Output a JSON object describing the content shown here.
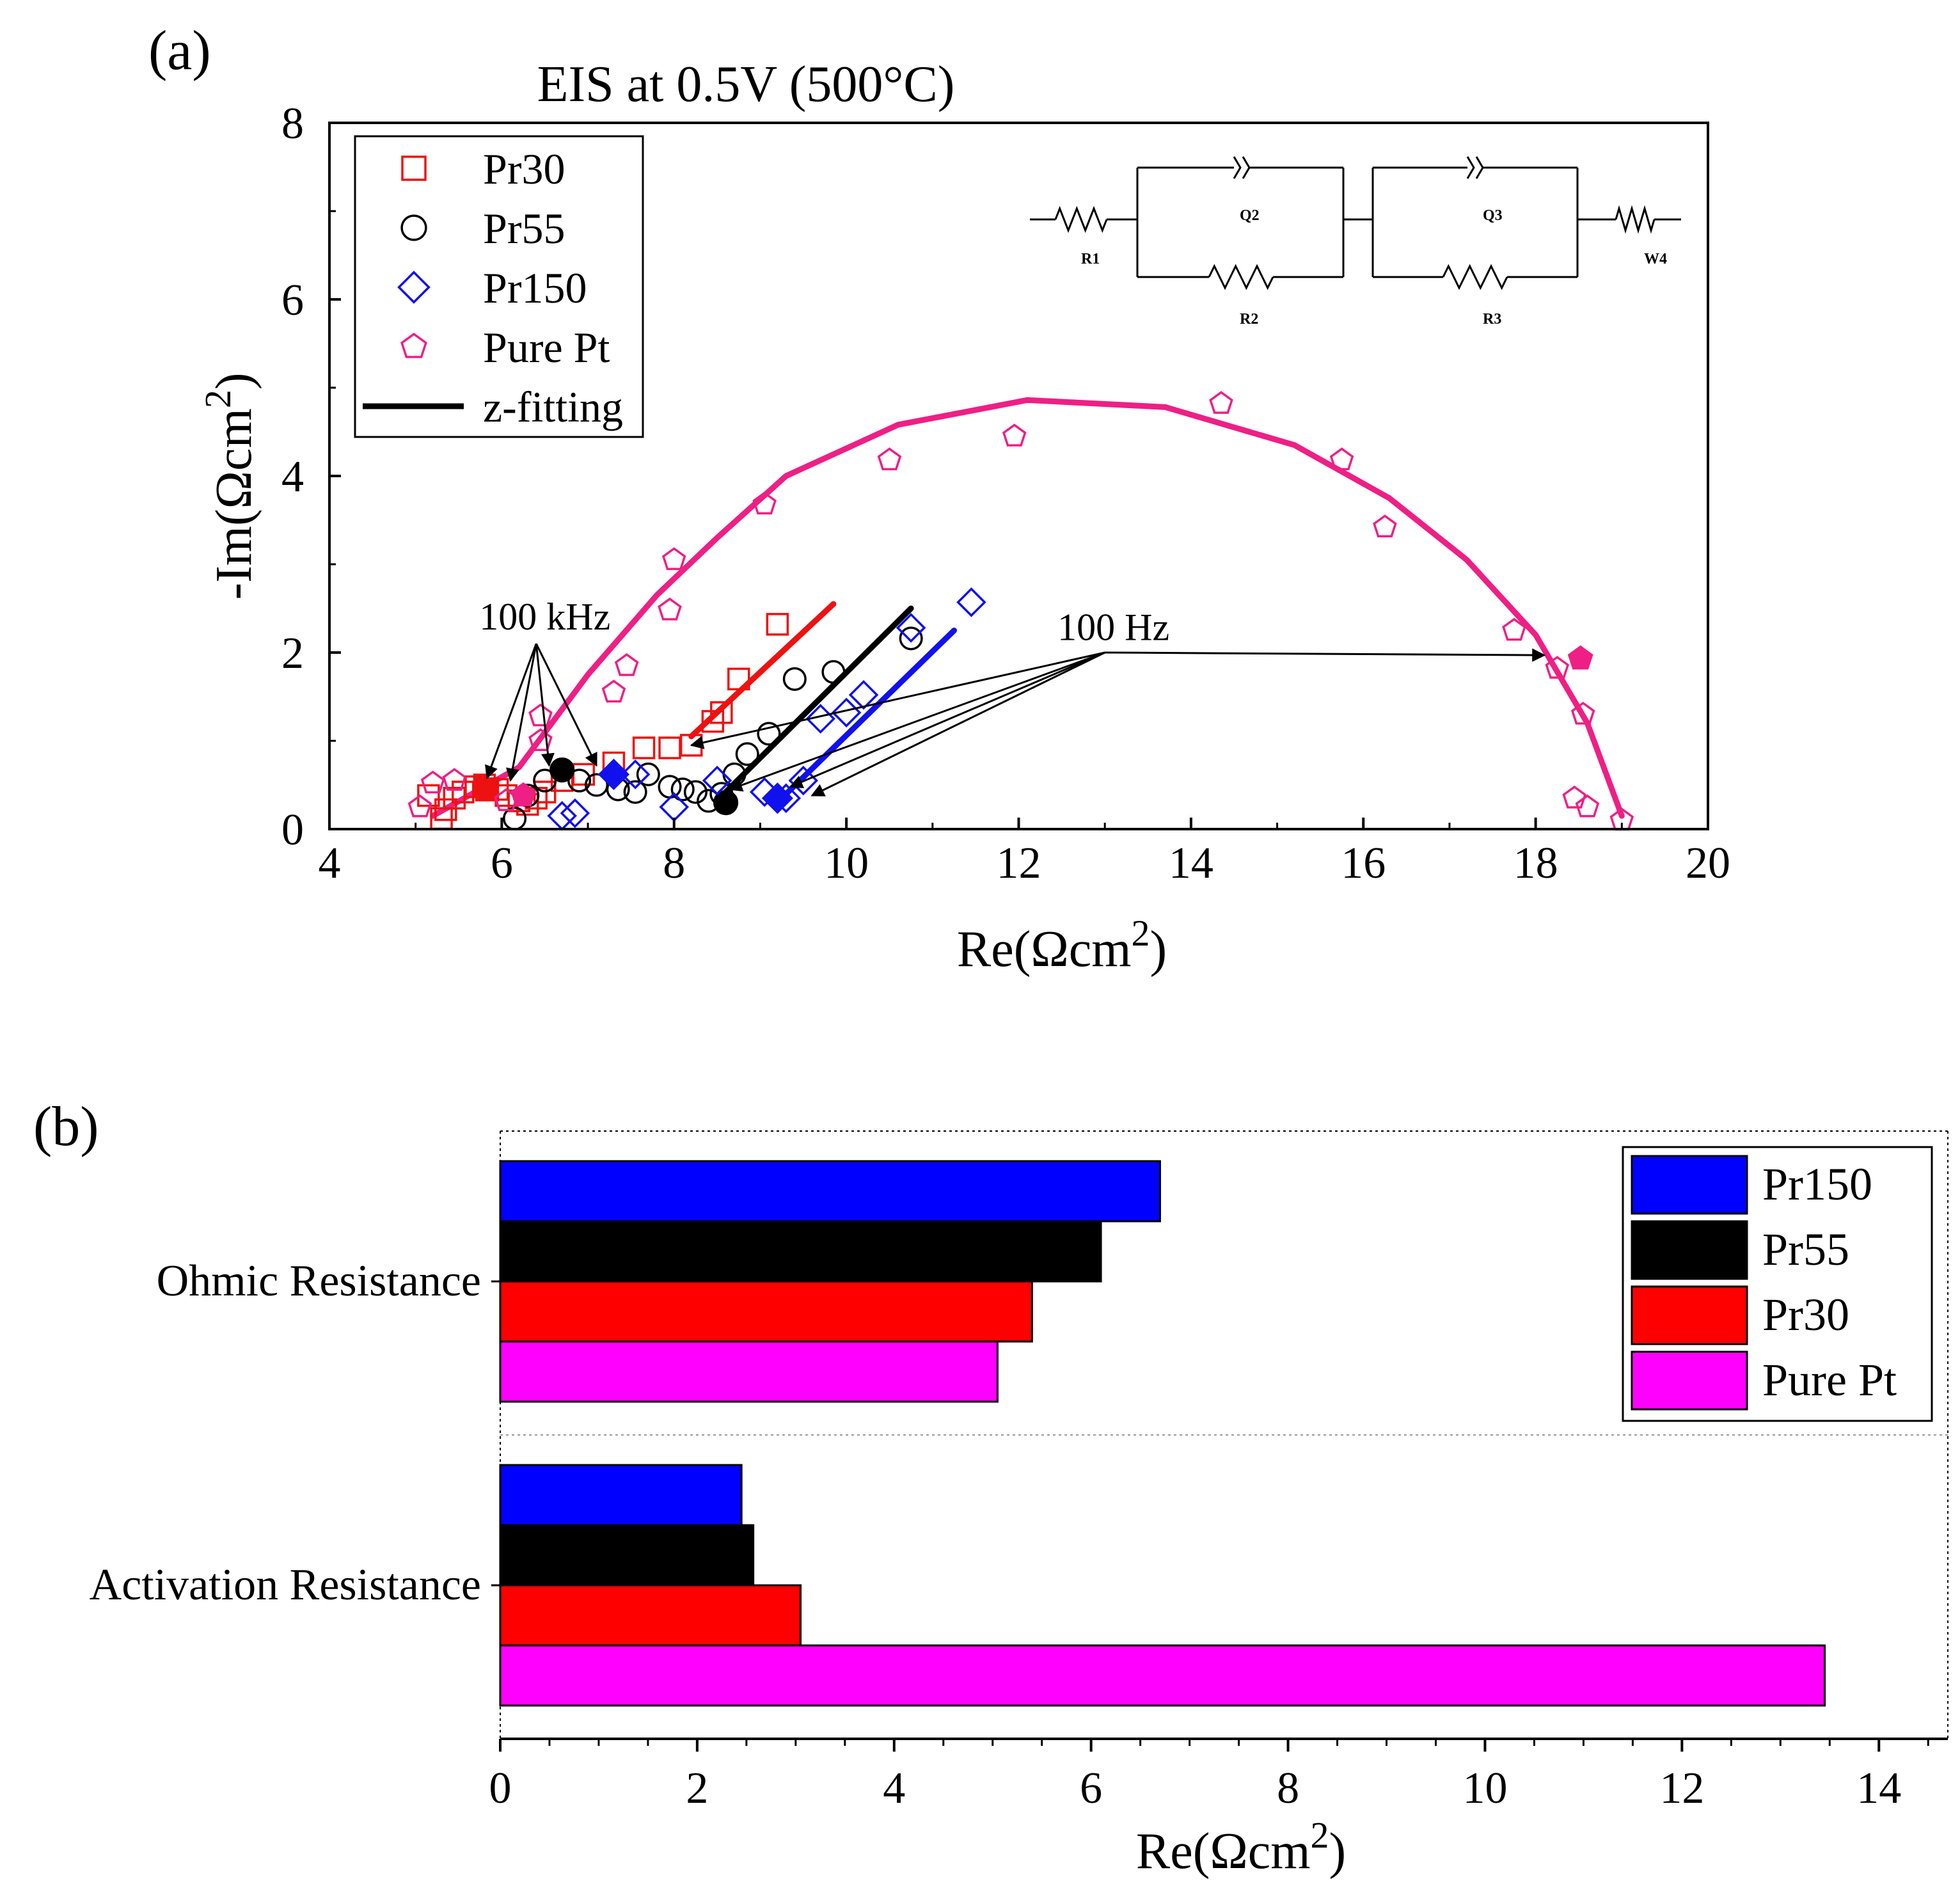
{
  "chart_data": [
    {
      "panel_label": "(a)",
      "type": "scatter",
      "title": "EIS at 0.5V (500°C)",
      "xlabel_base": "Re(Ωcm",
      "ylabel_base": "-Im(Ωcm",
      "label_sup": "2",
      "label_close": ")",
      "xlim": [
        4,
        20
      ],
      "ylim": [
        0,
        8
      ],
      "xticks": [
        4,
        6,
        8,
        10,
        12,
        14,
        16,
        18,
        20
      ],
      "yticks": [
        0,
        2,
        4,
        6,
        8
      ],
      "legend_position": "top-left",
      "legend": [
        {
          "name": "Pr30",
          "marker": "square",
          "color": "#ee1111"
        },
        {
          "name": "Pr55",
          "marker": "circle",
          "color": "#000000"
        },
        {
          "name": "Pr150",
          "marker": "diamond",
          "color": "#1111ee"
        },
        {
          "name": "Pure Pt",
          "marker": "pentagon",
          "color": "#ee1f85"
        },
        {
          "name": "z-fitting",
          "marker": "line",
          "color": "#000000"
        }
      ],
      "annotations": {
        "hf_label": "100 kHz",
        "lf_label": "100 Hz",
        "hf_anchor": [
          6.4,
          2.1
        ],
        "lf_anchor": [
          13.0,
          2.0
        ],
        "hf_targets": [
          [
            5.83,
            0.58
          ],
          [
            6.1,
            0.55
          ],
          [
            6.55,
            0.72
          ],
          [
            7.1,
            0.72
          ]
        ],
        "lf_targets": [
          [
            8.2,
            0.95
          ],
          [
            8.65,
            0.45
          ],
          [
            9.35,
            0.48
          ],
          [
            9.6,
            0.38
          ],
          [
            18.1,
            1.97
          ]
        ]
      },
      "circuit": {
        "R1": "R1",
        "Q2": "Q2",
        "R2": "R2",
        "Q3": "Q3",
        "R3": "R3",
        "W4": "W4"
      },
      "series": [
        {
          "name": "Pr30",
          "color": "#ee1111",
          "marker": "square",
          "x": [
            5.15,
            5.3,
            5.35,
            5.45,
            5.55,
            5.7,
            5.8,
            5.95,
            6.05,
            6.2,
            6.3,
            6.4,
            6.5,
            6.7,
            6.95,
            7.3,
            7.65,
            7.95,
            8.2,
            8.45,
            8.55,
            8.75,
            9.2
          ],
          "y": [
            0.38,
            0.12,
            0.22,
            0.35,
            0.42,
            0.48,
            0.5,
            0.45,
            0.38,
            0.32,
            0.28,
            0.35,
            0.42,
            0.55,
            0.62,
            0.75,
            0.92,
            0.92,
            0.95,
            1.22,
            1.32,
            1.7,
            2.32
          ],
          "filled": {
            "x": 5.83,
            "y": 0.45
          }
        },
        {
          "name": "Pr55",
          "color": "#000000",
          "marker": "circle",
          "x": [
            6.15,
            6.3,
            6.5,
            6.9,
            7.1,
            7.35,
            7.55,
            7.7,
            7.95,
            8.1,
            8.25,
            8.4,
            8.55,
            8.7,
            8.85,
            9.1,
            9.4,
            9.85,
            10.75
          ],
          "y": [
            0.12,
            0.38,
            0.55,
            0.55,
            0.5,
            0.45,
            0.42,
            0.62,
            0.48,
            0.45,
            0.42,
            0.32,
            0.4,
            0.62,
            0.85,
            1.08,
            1.7,
            1.78,
            2.16
          ],
          "filled": {
            "x": 6.7,
            "y": 0.67
          },
          "filled2": {
            "x": 8.6,
            "y": 0.3
          }
        },
        {
          "name": "Pr150",
          "color": "#1111ee",
          "marker": "diamond",
          "x": [
            6.7,
            6.85,
            7.55,
            8.0,
            8.5,
            9.05,
            9.3,
            9.5,
            9.7,
            10.0,
            10.2,
            10.75,
            11.45
          ],
          "y": [
            0.15,
            0.18,
            0.62,
            0.25,
            0.55,
            0.42,
            0.35,
            0.55,
            1.25,
            1.32,
            1.52,
            2.28,
            2.57
          ],
          "filled": {
            "x": 7.3,
            "y": 0.62
          },
          "filled2": {
            "x": 9.2,
            "y": 0.35
          }
        },
        {
          "name": "Pure Pt",
          "color": "#ee1f85",
          "marker": "pentagon",
          "x": [
            5.05,
            5.2,
            5.45,
            6.05,
            6.45,
            6.45,
            7.3,
            7.45,
            7.95,
            8.0,
            9.05,
            10.5,
            11.95,
            14.35,
            15.75,
            16.25,
            17.75,
            18.25,
            18.45,
            18.55,
            18.6,
            19.0
          ],
          "y": [
            0.25,
            0.52,
            0.55,
            0.32,
            1.0,
            1.28,
            1.55,
            1.85,
            2.48,
            3.05,
            3.68,
            4.18,
            4.45,
            4.82,
            4.18,
            3.42,
            2.25,
            1.82,
            0.35,
            1.3,
            0.25,
            0.1
          ],
          "filled": {
            "x": 18.52,
            "y": 1.93
          },
          "filled2": {
            "x": 6.25,
            "y": 0.38
          }
        }
      ],
      "fits": [
        {
          "name": "Pr30 fit",
          "color": "#ee1111",
          "x": [
            8.2,
            9.85
          ],
          "y": [
            1.05,
            2.55
          ]
        },
        {
          "name": "Pr55 fit",
          "color": "#000000",
          "x": [
            8.6,
            10.75
          ],
          "y": [
            0.42,
            2.5
          ]
        },
        {
          "name": "Pr150 fit",
          "color": "#1111ee",
          "x": [
            9.25,
            11.25
          ],
          "y": [
            0.35,
            2.25
          ]
        },
        {
          "name": "Pure Pt fit",
          "color": "#ee1f85",
          "x": [
            5.2,
            6.2,
            7.0,
            7.8,
            8.5,
            9.3,
            10.6,
            12.1,
            13.7,
            15.2,
            16.3,
            17.2,
            18.0,
            18.6,
            19.0
          ],
          "y": [
            0.15,
            0.7,
            1.75,
            2.65,
            3.3,
            4.0,
            4.58,
            4.86,
            4.78,
            4.35,
            3.75,
            3.05,
            2.2,
            1.2,
            0.15
          ]
        }
      ]
    },
    {
      "panel_label": "(b)",
      "type": "bar",
      "orientation": "horizontal",
      "xlabel_base": "Re(Ωcm",
      "label_sup": "2",
      "label_close": ")",
      "xlim": [
        0,
        14.7
      ],
      "xticks": [
        0,
        2,
        4,
        6,
        8,
        10,
        12,
        14
      ],
      "categories": [
        "Ohmic Resistance",
        "Activation Resistance"
      ],
      "legend_position": "top-right",
      "series": [
        {
          "name": "Pr150",
          "color": "#0000ff",
          "values": [
            6.7,
            2.45
          ]
        },
        {
          "name": "Pr55",
          "color": "#000000",
          "values": [
            6.1,
            2.57
          ]
        },
        {
          "name": "Pr30",
          "color": "#ff0000",
          "values": [
            5.4,
            3.05
          ]
        },
        {
          "name": "Pure Pt",
          "color": "#ff00ff",
          "values": [
            5.05,
            13.45
          ]
        }
      ]
    }
  ]
}
